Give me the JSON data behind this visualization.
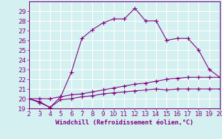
{
  "xlabel": "Windchill (Refroidissement éolien,°C)",
  "x_values": [
    2,
    3,
    4,
    5,
    6,
    7,
    8,
    9,
    10,
    11,
    12,
    13,
    14,
    15,
    16,
    17,
    18,
    19,
    20
  ],
  "line1_y": [
    20.0,
    19.7,
    19.1,
    20.2,
    22.7,
    26.2,
    27.1,
    27.8,
    28.2,
    28.2,
    29.3,
    28.0,
    28.0,
    26.0,
    26.2,
    26.2,
    25.0,
    23.0,
    22.2
  ],
  "line2_y": [
    20.0,
    20.0,
    20.0,
    20.2,
    20.4,
    20.5,
    20.7,
    20.9,
    21.1,
    21.3,
    21.5,
    21.6,
    21.8,
    22.0,
    22.1,
    22.2,
    22.2,
    22.2,
    22.2
  ],
  "line3_y": [
    20.0,
    19.6,
    19.1,
    19.9,
    20.0,
    20.2,
    20.3,
    20.5,
    20.6,
    20.7,
    20.8,
    20.9,
    21.0,
    20.9,
    21.0,
    21.0,
    21.0,
    21.0,
    21.0
  ],
  "line_color": "#800080",
  "bg_color": "#d4f0f0",
  "grid_color": "#ffffff",
  "ylim": [
    19,
    30
  ],
  "xlim": [
    2,
    20
  ],
  "yticks": [
    19,
    20,
    21,
    22,
    23,
    24,
    25,
    26,
    27,
    28,
    29
  ],
  "xticks": [
    2,
    3,
    4,
    5,
    6,
    7,
    8,
    9,
    10,
    11,
    12,
    13,
    14,
    15,
    16,
    17,
    18,
    19,
    20
  ],
  "tick_fontsize": 6.5,
  "xlabel_fontsize": 6.5
}
